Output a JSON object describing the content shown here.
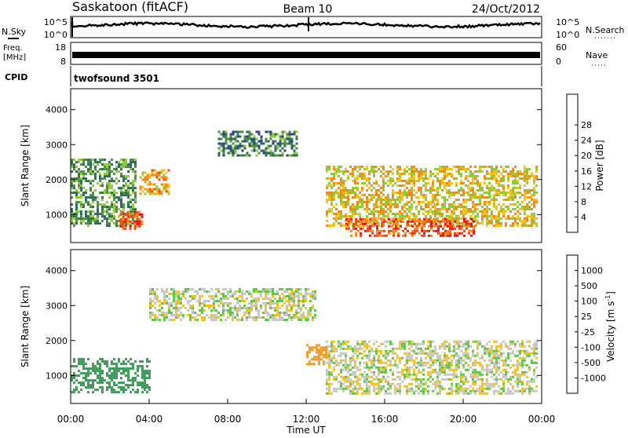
{
  "header": {
    "station": "Saskatoon (fitACF)",
    "beam": "Beam 10",
    "date": "24/Oct/2012"
  },
  "nsky_panel": {
    "left_label": "N.Sky",
    "right_label": "N.Search",
    "top_tick": "10^5",
    "bottom_tick": "10^0"
  },
  "freq_panel": {
    "left_label_top": "Freq.",
    "left_label_bottom": "[MHz]",
    "left_top_tick": "18",
    "left_bottom_tick": "8",
    "right_label": "Nave",
    "right_top_tick": "60",
    "right_bottom_tick": "0"
  },
  "cpid_panel": {
    "label": "CPID",
    "text": "twofsound 3501"
  },
  "chart_data": [
    {
      "type": "heatmap",
      "name": "power",
      "ylabel": "Slant Range [km]",
      "ylim": [
        200,
        4600
      ],
      "yticks": [
        "1000",
        "2000",
        "3000",
        "4000"
      ],
      "colorbar_label": "Power [dB]",
      "colorbar_ticks": [
        "4",
        "8",
        "12",
        "16",
        "20",
        "24",
        "28"
      ],
      "colorbar_colors": [
        "#1a1aff",
        "#2a3aa8",
        "#2e6a5a",
        "#4b8f3f",
        "#8fcb3a",
        "#f5c21b",
        "#f58a1b",
        "#ee4a14",
        "#e6161c"
      ],
      "regions": [
        {
          "t0": 0.0,
          "t1": 3.3,
          "r0": 700,
          "r1": 2600,
          "power": 12
        },
        {
          "t0": 2.5,
          "t1": 3.6,
          "r0": 600,
          "r1": 1100,
          "power": 28
        },
        {
          "t0": 3.5,
          "t1": 5.0,
          "r0": 1600,
          "r1": 2300,
          "power": 22
        },
        {
          "t0": 7.5,
          "t1": 11.5,
          "r0": 2700,
          "r1": 3400,
          "power": 10
        },
        {
          "t0": 13.0,
          "t1": 23.8,
          "r0": 700,
          "r1": 2400,
          "power": 20
        },
        {
          "t0": 14.0,
          "t1": 20.5,
          "r0": 400,
          "r1": 900,
          "power": 28
        }
      ]
    },
    {
      "type": "heatmap",
      "name": "velocity",
      "xlabel": "Time UT",
      "ylabel": "Slant Range [km]",
      "ylim": [
        200,
        4600
      ],
      "yticks": [
        "1000",
        "2000",
        "3000",
        "4000"
      ],
      "xticks": [
        "00:00",
        "04:00",
        "08:00",
        "12:00",
        "16:00",
        "20:00",
        "00:00"
      ],
      "colorbar_label": "Velocity [m s^-1]",
      "colorbar_ticks": [
        "1000",
        "500",
        "100",
        "25",
        "-25",
        "-100",
        "-500",
        "-1000"
      ],
      "colorbar_colors": [
        "#1e3ea8",
        "#2f6a8a",
        "#3f9a5a",
        "#5fc848",
        "#c8c8c8",
        "#f5c21b",
        "#f59a2a",
        "#ee5a14",
        "#e6161c"
      ],
      "regions": [
        {
          "t0": 0.0,
          "t1": 4.0,
          "r0": 500,
          "r1": 1500,
          "velocity": 300
        },
        {
          "t0": 4.0,
          "t1": 12.5,
          "r0": 2600,
          "r1": 3500,
          "velocity": 0
        },
        {
          "t0": 13.0,
          "t1": 23.8,
          "r0": 500,
          "r1": 2000,
          "velocity": 0
        },
        {
          "t0": 12.0,
          "t1": 13.0,
          "r0": 1300,
          "r1": 1900,
          "velocity": -400
        }
      ]
    }
  ]
}
